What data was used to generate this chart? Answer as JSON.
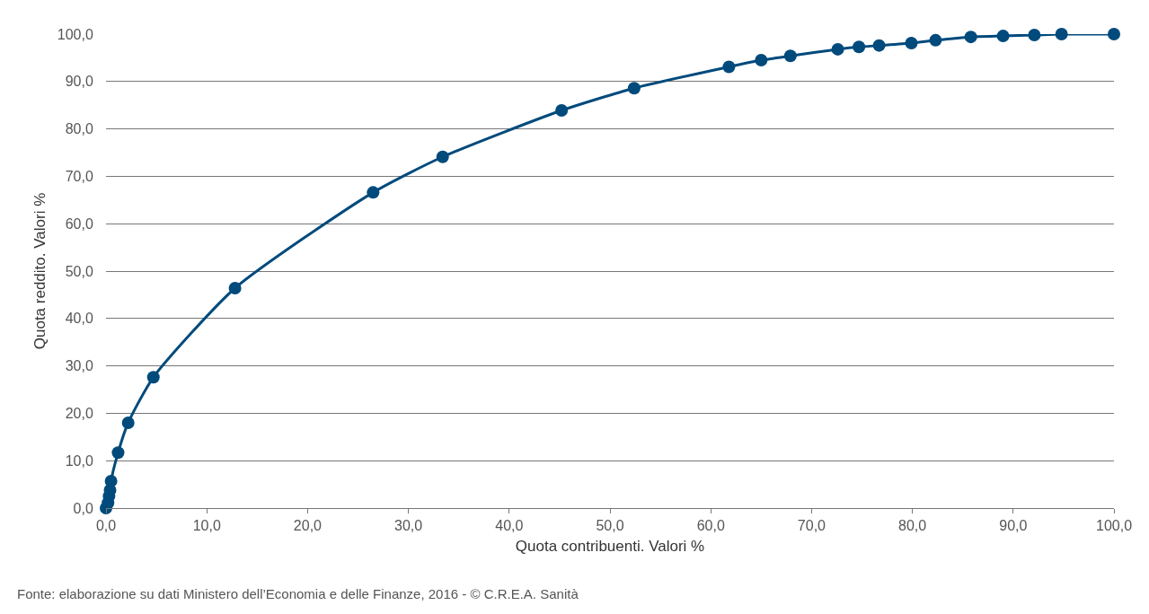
{
  "chart_data": {
    "type": "line",
    "xlabel": "Quota contribuenti. Valori %",
    "ylabel": "Quota reddito. Valori %",
    "annotations": [
      "Fonte: elaborazione su dati Ministero dell’Economia e delle Finanze, 2016 - © C.R.E.A. Sanità"
    ],
    "x": [
      0,
      0.2,
      0.3,
      0.4,
      0.5,
      1.2,
      2.2,
      4.7,
      12.8,
      26.5,
      33.4,
      45.2,
      52.4,
      61.8,
      65.0,
      67.9,
      72.6,
      74.7,
      76.7,
      79.9,
      82.3,
      85.8,
      89.0,
      92.1,
      94.8,
      100
    ],
    "series": [
      {
        "color": "#004a7c",
        "values": [
          0,
          1.1,
          2.5,
          3.8,
          5.7,
          11.7,
          18.0,
          27.6,
          46.4,
          66.6,
          74.1,
          83.9,
          88.6,
          93.1,
          94.5,
          95.4,
          96.8,
          97.3,
          97.6,
          98.1,
          98.7,
          99.4,
          99.6,
          99.8,
          100.0,
          100.0
        ]
      }
    ],
    "xlim": [
      0,
      100
    ],
    "ylim": [
      0,
      100
    ],
    "xticks": [
      {
        "value": 0,
        "label": "0,0"
      },
      {
        "value": 10,
        "label": "10,0"
      },
      {
        "value": 20,
        "label": "20,0"
      },
      {
        "value": 30,
        "label": "30,0"
      },
      {
        "value": 40,
        "label": "40,0"
      },
      {
        "value": 50,
        "label": "50,0"
      },
      {
        "value": 60,
        "label": "60,0"
      },
      {
        "value": 70,
        "label": "70,0"
      },
      {
        "value": 80,
        "label": "80,0"
      },
      {
        "value": 90,
        "label": "90,0"
      },
      {
        "value": 100,
        "label": "100,0"
      }
    ],
    "yticks": [
      {
        "value": 0,
        "label": "0,0"
      },
      {
        "value": 10,
        "label": "10,0"
      },
      {
        "value": 20,
        "label": "20,0"
      },
      {
        "value": 30,
        "label": "30,0"
      },
      {
        "value": 40,
        "label": "40,0"
      },
      {
        "value": 50,
        "label": "50,0"
      },
      {
        "value": 60,
        "label": "60,0"
      },
      {
        "value": 70,
        "label": "70,0"
      },
      {
        "value": 80,
        "label": "80,0"
      },
      {
        "value": 90,
        "label": "90,0"
      },
      {
        "value": 100,
        "label": "100,0"
      }
    ],
    "grid": "y",
    "marker": "circle",
    "line_style": "solid"
  }
}
